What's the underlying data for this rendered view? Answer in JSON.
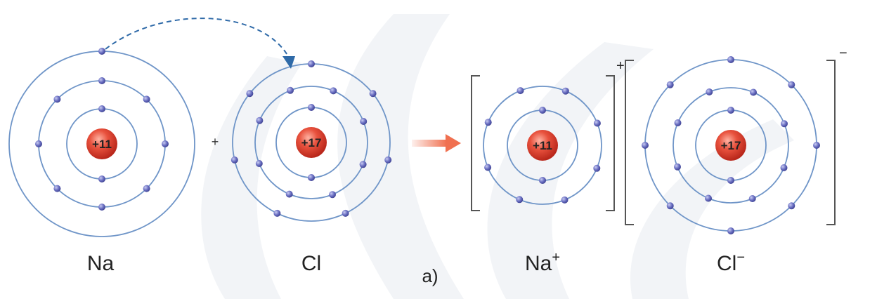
{
  "atoms": [
    {
      "id": "na",
      "symbol": "Na",
      "nucleus_label": "+11",
      "shell_electrons": [
        2,
        8,
        1
      ]
    },
    {
      "id": "cl",
      "symbol": "Cl",
      "nucleus_label": "+17",
      "shell_electrons": [
        2,
        8,
        7
      ]
    },
    {
      "id": "na_ion",
      "symbol": "Na",
      "charge": "+",
      "nucleus_label": "+11",
      "shell_electrons": [
        2,
        8
      ]
    },
    {
      "id": "cl_ion",
      "symbol": "Cl",
      "charge": "−",
      "nucleus_label": "+17",
      "shell_electrons": [
        2,
        8,
        8
      ]
    }
  ],
  "plus_sign": "+",
  "caption": "a)",
  "colors": {
    "shell": "#6f95c8",
    "electron": "#5a5fb0",
    "nucleus": "#d83a2a",
    "arrow": "#f07050",
    "transfer_arrow": "#2f6aa8",
    "bracket": "#555555",
    "background_pattern": "#f1f3f6"
  }
}
